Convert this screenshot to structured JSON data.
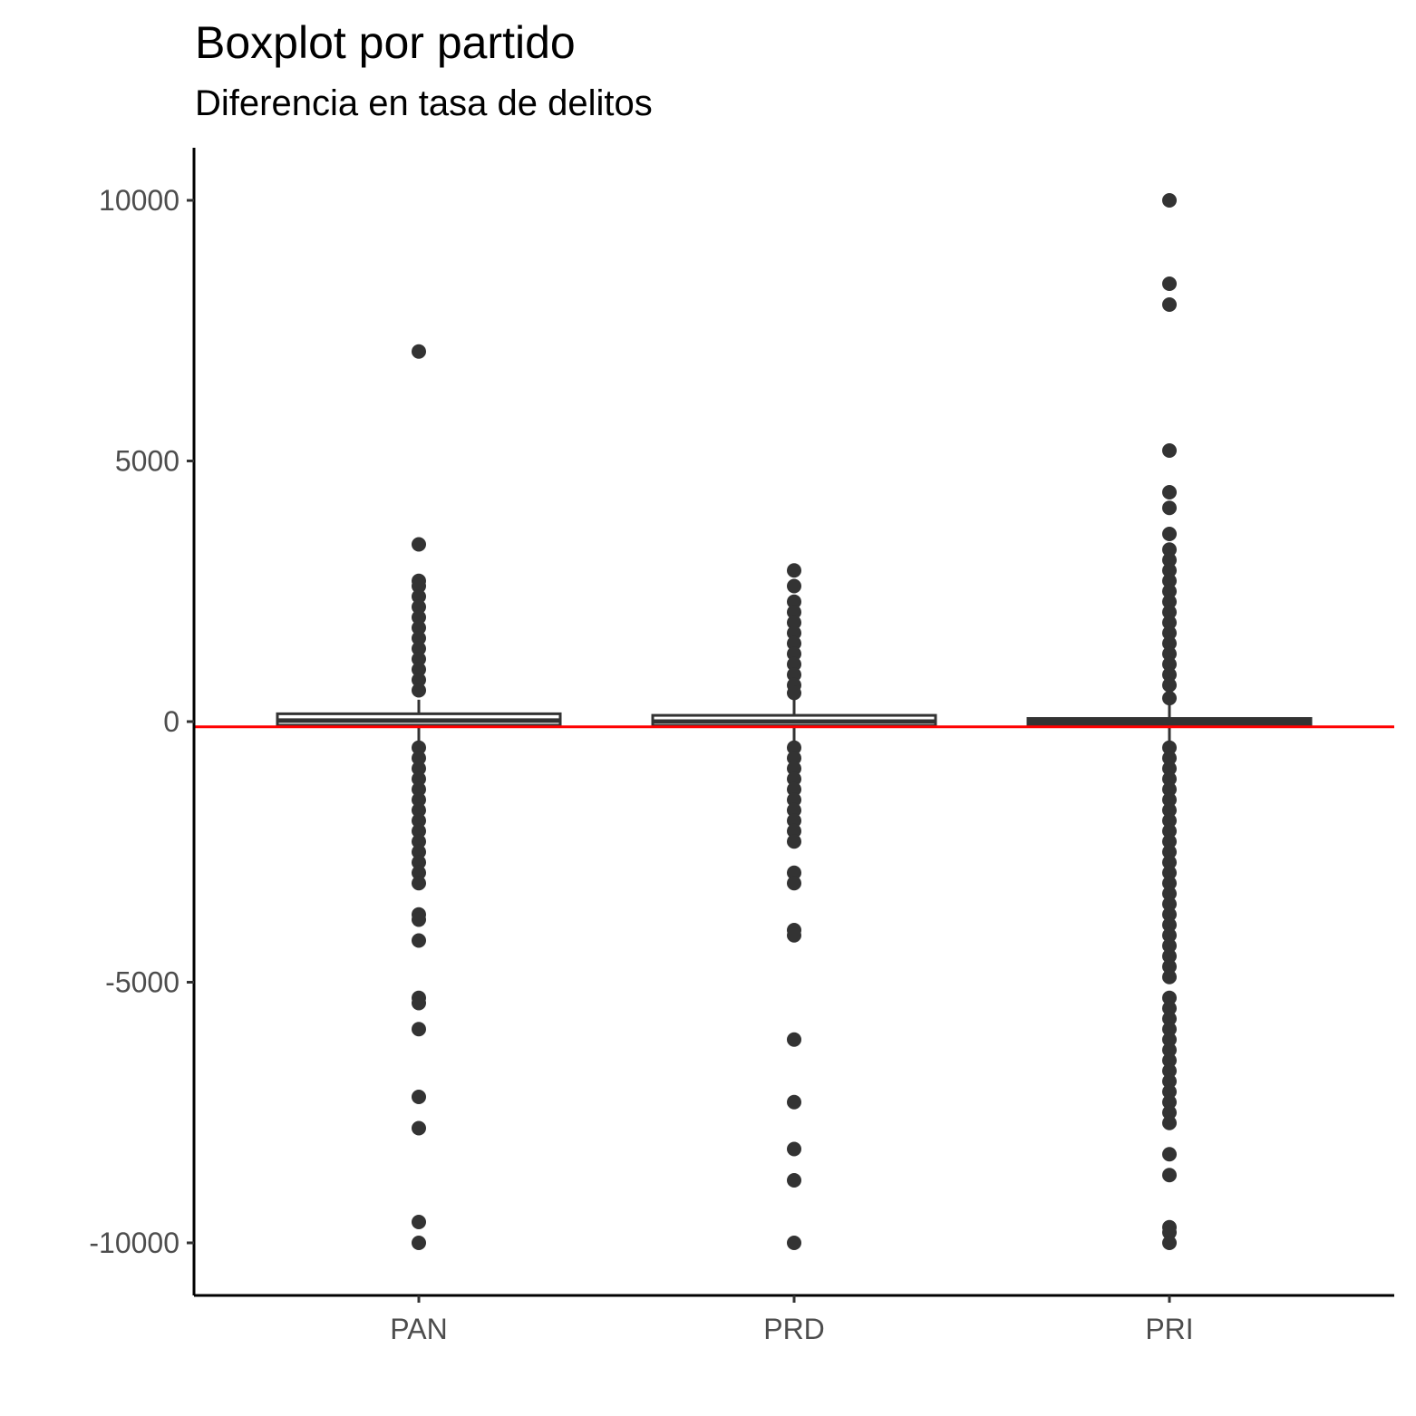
{
  "chart_data": {
    "type": "boxplot",
    "title": "Boxplot por partido",
    "subtitle": "Diferencia en tasa de delitos",
    "xlabel": "",
    "ylabel": "",
    "ylim": [
      -11000,
      11000
    ],
    "yticks": [
      -10000,
      -5000,
      0,
      5000,
      10000
    ],
    "ytick_labels": [
      "-10000",
      "-5000",
      "0",
      "5000",
      "10000"
    ],
    "reference_line": {
      "y": -100,
      "color": "#ff0000"
    },
    "grid": false,
    "categories": [
      "PAN",
      "PRD",
      "PRI"
    ],
    "boxes": [
      {
        "category": "PAN",
        "q1": -70,
        "median": 20,
        "q3": 150,
        "whisker_low": -450,
        "whisker_high": 420,
        "outliers": [
          7100,
          3400,
          2700,
          2600,
          2400,
          2200,
          2000,
          1800,
          1600,
          1400,
          1200,
          1000,
          800,
          600,
          -500,
          -700,
          -900,
          -1100,
          -1300,
          -1500,
          -1700,
          -1900,
          -2100,
          -2300,
          -2500,
          -2700,
          -2900,
          -3100,
          -3700,
          -3800,
          -4200,
          -5300,
          -5400,
          -5900,
          -7200,
          -7800,
          -9600,
          -10000
        ]
      },
      {
        "category": "PRD",
        "q1": -80,
        "median": 0,
        "q3": 120,
        "whisker_low": -450,
        "whisker_high": 420,
        "outliers": [
          2900,
          2600,
          2300,
          2100,
          1900,
          1700,
          1500,
          1300,
          1100,
          900,
          700,
          550,
          -500,
          -700,
          -900,
          -1100,
          -1300,
          -1500,
          -1700,
          -1900,
          -2100,
          -2300,
          -2900,
          -3100,
          -4000,
          -4100,
          -6100,
          -7300,
          -8200,
          -8800,
          -10000
        ]
      },
      {
        "category": "PRI",
        "q1": -60,
        "median": 0,
        "q3": 60,
        "whisker_low": -400,
        "whisker_high": 350,
        "outliers": [
          10000,
          8400,
          8000,
          5200,
          4400,
          4100,
          3600,
          3300,
          3100,
          2900,
          2700,
          2500,
          2300,
          2100,
          1900,
          1700,
          1500,
          1300,
          1100,
          900,
          700,
          450,
          -500,
          -700,
          -900,
          -1100,
          -1300,
          -1500,
          -1700,
          -1900,
          -2100,
          -2300,
          -2500,
          -2700,
          -2900,
          -3100,
          -3300,
          -3500,
          -3700,
          -3900,
          -4100,
          -4300,
          -4500,
          -4700,
          -4900,
          -5300,
          -5500,
          -5700,
          -5900,
          -6100,
          -6300,
          -6500,
          -6700,
          -6900,
          -7100,
          -7300,
          -7500,
          -7700,
          -8300,
          -8700,
          -9700,
          -9800,
          -10000
        ]
      }
    ]
  }
}
